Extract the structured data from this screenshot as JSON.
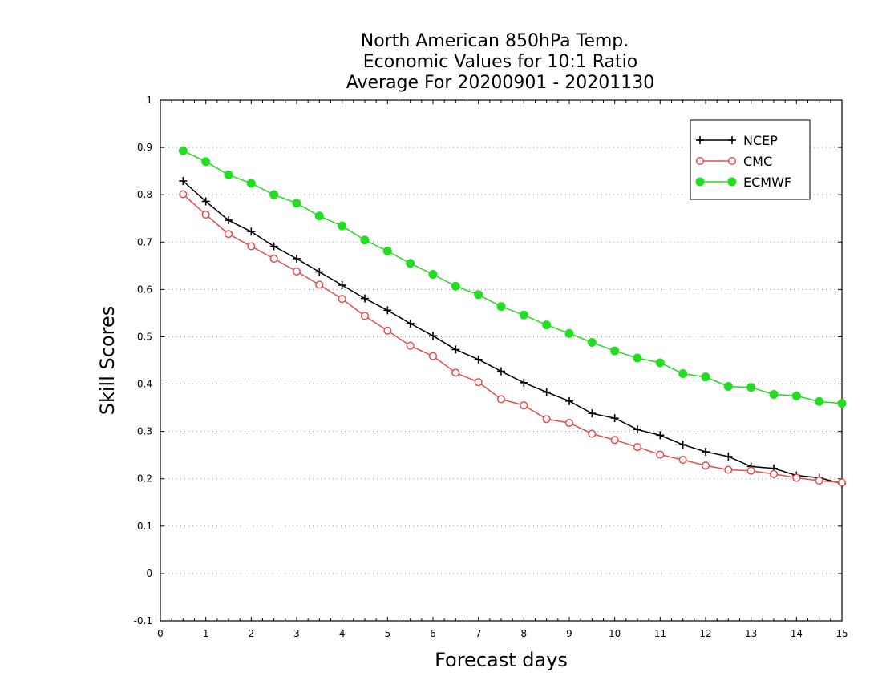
{
  "chart_data": {
    "type": "line",
    "title_lines": [
      "North American 850hPa Temp.",
      "Economic Values for 10:1 Ratio",
      "Average For 20200901 - 20201130"
    ],
    "xlabel": "Forecast days",
    "ylabel": "Skill Scores",
    "xlim": [
      0,
      15
    ],
    "ylim": [
      -0.1,
      1
    ],
    "x_ticks": [
      "0",
      "1",
      "2",
      "3",
      "4",
      "5",
      "6",
      "7",
      "8",
      "9",
      "10",
      "11",
      "12",
      "13",
      "14",
      "15"
    ],
    "y_ticks": [
      "-0.1",
      "0",
      "0.1",
      "0.2",
      "0.3",
      "0.4",
      "0.5",
      "0.6",
      "0.7",
      "0.8",
      "0.9",
      "1"
    ],
    "grid": "horizontal dotted",
    "legend_position": "top-right",
    "x": [
      0.5,
      1,
      1.5,
      2,
      2.5,
      3,
      3.5,
      4,
      4.5,
      5,
      5.5,
      6,
      6.5,
      7,
      7.5,
      8,
      8.5,
      9,
      9.5,
      10,
      10.5,
      11,
      11.5,
      12,
      12.5,
      13,
      13.5,
      14,
      14.5,
      15
    ],
    "series": [
      {
        "name": "NCEP",
        "color": "#000000",
        "marker": "plus",
        "values": [
          0.829,
          0.786,
          0.746,
          0.722,
          0.691,
          0.665,
          0.637,
          0.609,
          0.581,
          0.556,
          0.528,
          0.502,
          0.473,
          0.452,
          0.427,
          0.403,
          0.383,
          0.364,
          0.338,
          0.328,
          0.304,
          0.292,
          0.272,
          0.257,
          0.247,
          0.226,
          0.222,
          0.207,
          0.202,
          0.19
        ]
      },
      {
        "name": "CMC",
        "color": "#e84c4c",
        "marker": "open-circle",
        "values": [
          0.801,
          0.758,
          0.717,
          0.691,
          0.665,
          0.638,
          0.61,
          0.58,
          0.544,
          0.513,
          0.481,
          0.459,
          0.424,
          0.404,
          0.368,
          0.355,
          0.326,
          0.318,
          0.295,
          0.282,
          0.267,
          0.251,
          0.24,
          0.228,
          0.219,
          0.217,
          0.21,
          0.202,
          0.196,
          0.192
        ]
      },
      {
        "name": "ECMWF",
        "color": "#22dd22",
        "marker": "filled-circle",
        "values": [
          0.893,
          0.87,
          0.842,
          0.824,
          0.8,
          0.782,
          0.755,
          0.734,
          0.704,
          0.681,
          0.655,
          0.632,
          0.607,
          0.589,
          0.564,
          0.546,
          0.525,
          0.507,
          0.488,
          0.47,
          0.455,
          0.445,
          0.422,
          0.415,
          0.395,
          0.393,
          0.378,
          0.375,
          0.363,
          0.359
        ]
      }
    ]
  }
}
